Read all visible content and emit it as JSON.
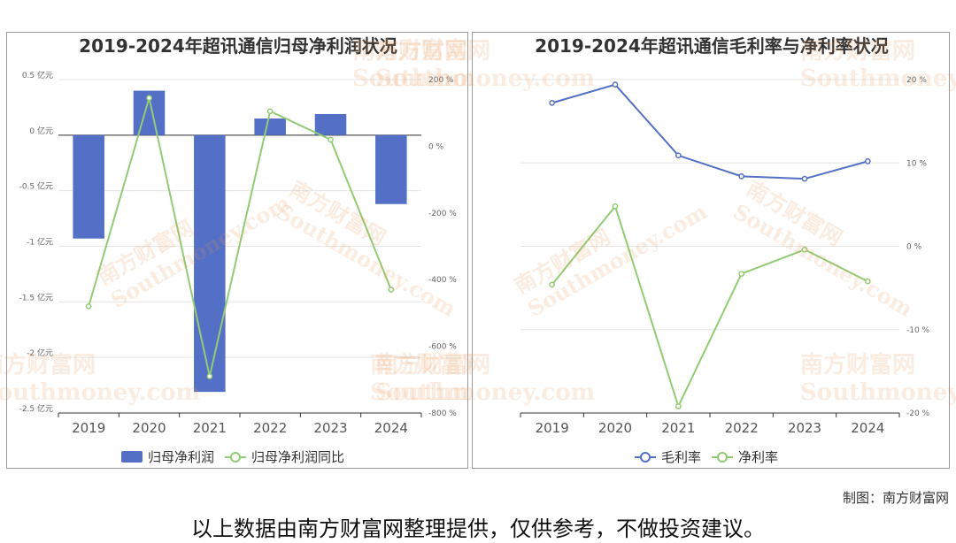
{
  "watermark": {
    "cn": "南方财富网",
    "en": "Southmoney.com"
  },
  "credit": "制图：南方财富网",
  "disclaimer": "以上数据由南方财富网整理提供，仅供参考，不做投资建议。",
  "colors": {
    "bar": "#5470c6",
    "line_green": "#91cc75",
    "line_blue": "#5470c6"
  },
  "chart_data": [
    {
      "type": "bar",
      "title": "2019-2024年超讯通信归母净利润状况",
      "categories": [
        "2019",
        "2020",
        "2021",
        "2022",
        "2023",
        "2024"
      ],
      "y_left": {
        "ylim": [
          -2.5,
          0.5
        ],
        "ticks": [
          0.5,
          0,
          -0.5,
          -1,
          -1.5,
          -2,
          -2.5
        ],
        "unit": "亿元"
      },
      "y_right": {
        "ylim": [
          -800,
          200
        ],
        "ticks": [
          200,
          0,
          -200,
          -400,
          -600,
          -800
        ],
        "unit": "%"
      },
      "tick_labels_left": [
        "0.5 亿元",
        "0 亿元",
        "-0.5 亿元",
        "-1 亿元",
        "-1.5 亿元",
        "-2 亿元",
        "-2.5 亿元"
      ],
      "tick_labels_right": [
        "200 %",
        "0 %",
        "-200 %",
        "-400 %",
        "-600 %",
        "-800 %"
      ],
      "series": [
        {
          "name": "归母净利润",
          "type": "bar",
          "axis": "left",
          "values": [
            -0.93,
            0.4,
            -2.31,
            0.15,
            0.19,
            -0.62
          ]
        },
        {
          "name": "归母净利润同比",
          "type": "line",
          "axis": "right",
          "values": [
            -480,
            145,
            -690,
            105,
            20,
            -430
          ]
        }
      ],
      "legend": "bottom-center",
      "grid": true
    },
    {
      "type": "line",
      "title": "2019-2024年超讯通信毛利率与净利率状况",
      "categories": [
        "2019",
        "2020",
        "2021",
        "2022",
        "2023",
        "2024"
      ],
      "y_right": {
        "ylim": [
          -20,
          20
        ],
        "ticks": [
          20,
          10,
          0,
          -10,
          -20
        ],
        "unit": "%"
      },
      "tick_labels_right": [
        "20 %",
        "10 %",
        "0 %",
        "-10 %",
        "-20 %"
      ],
      "series": [
        {
          "name": "毛利率",
          "type": "line",
          "values": [
            17.2,
            19.4,
            10.9,
            8.4,
            8.1,
            10.2
          ]
        },
        {
          "name": "净利率",
          "type": "line",
          "values": [
            -4.6,
            4.8,
            -19.2,
            -3.3,
            -0.4,
            -4.2
          ]
        }
      ],
      "legend": "bottom-center",
      "grid": true
    }
  ]
}
